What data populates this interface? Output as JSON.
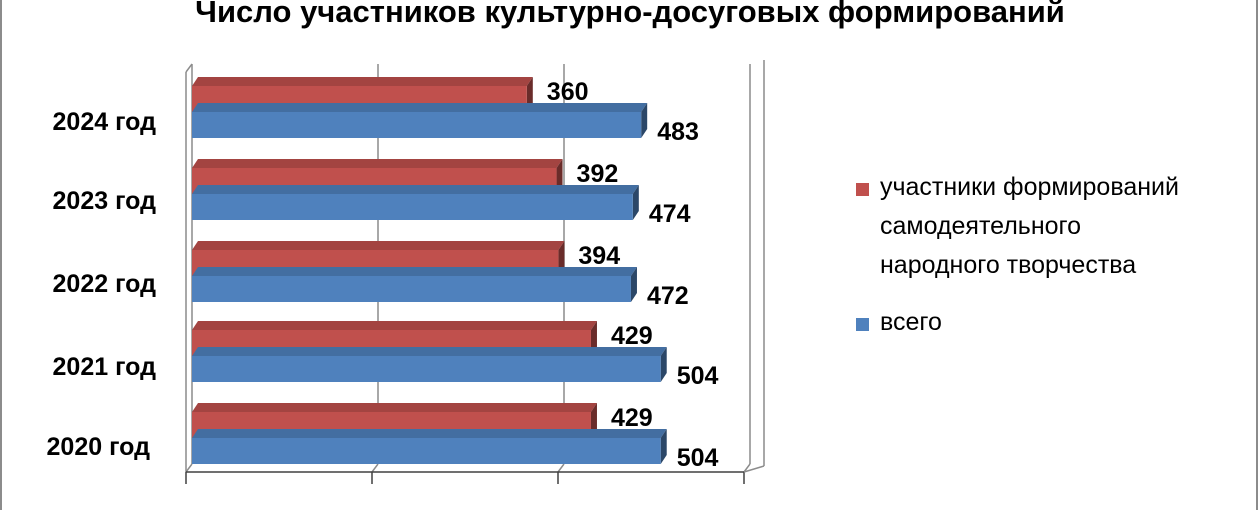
{
  "chart_data": {
    "type": "bar",
    "orientation": "horizontal",
    "title": "Число участников культурно-досуговых формирований",
    "categories": [
      "2024 год",
      "2023 год",
      "2022 год",
      "2021 год",
      "2020 год"
    ],
    "series": [
      {
        "name": "участники формирований самодеятельного народного творчества",
        "legend_lines": [
          "участники формирований",
          "самодеятельного",
          "народного творчества"
        ],
        "values": [
          360,
          392,
          394,
          429,
          429
        ],
        "color": "#c0504d"
      },
      {
        "name": "всего",
        "legend_lines": [
          "всего"
        ],
        "values": [
          483,
          474,
          472,
          504,
          504
        ],
        "color": "#4f81bd"
      }
    ],
    "xlim": [
      0,
      600
    ],
    "grid": true,
    "three_d": true,
    "legend_position": "right",
    "data_labels": true
  }
}
